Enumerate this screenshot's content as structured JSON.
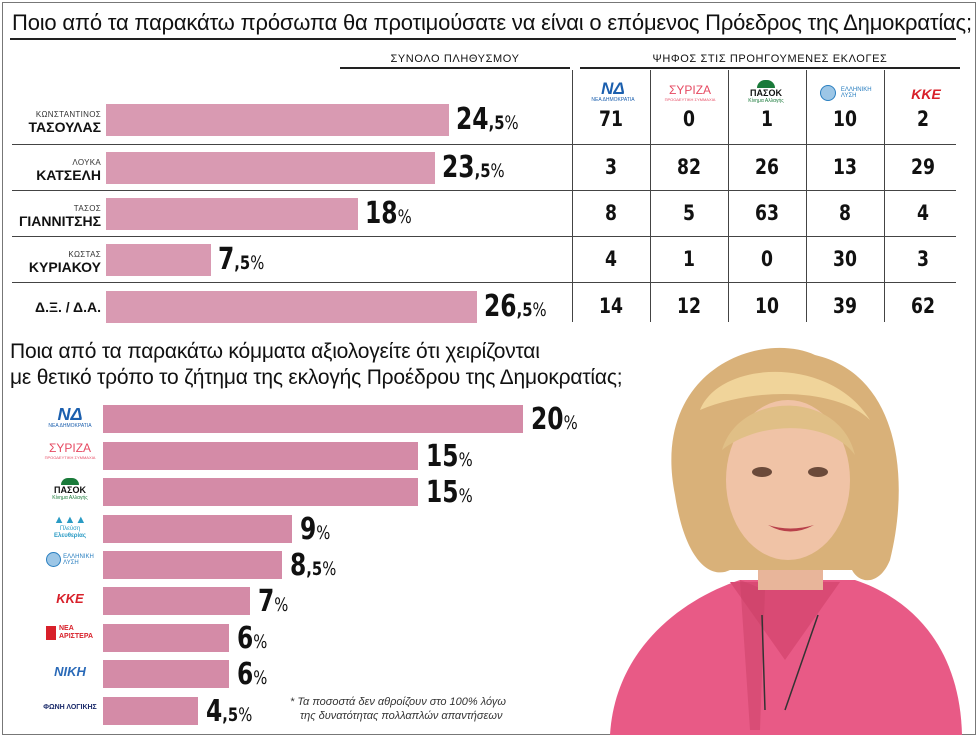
{
  "q1_title": "Ποιο από τα παρακάτω πρόσωπα θα προτιμούσατε να είναι ο επόμενος Πρόεδρος της Δημοκρατίας;",
  "q2_title_line1": "Ποια από τα παρακάτω κόμματα αξιολογείτε ότι χειρίζονται",
  "q2_title_line2": "με θετικό τρόπο το ζήτημα της εκλογής Προέδρου της Δημοκρατίας;",
  "header_total": "ΣΥΝΟΛΟ ΠΛΗΘΥΣΜΟΥ",
  "header_previous": "ΨΗΦΟΣ ΣΤΙΣ ΠΡΟΗΓΟΥΜΕΝΕΣ ΕΚΛΟΓΕΣ",
  "logos": {
    "nd": {
      "mark": "ΝΔ",
      "sub": "ΝΕΑ ΔΗΜΟΚΡΑΤΙΑ",
      "color": "#1b5fae"
    },
    "syriza": {
      "mark": "ΣΥΡΙΖΑ",
      "sub": "ΠΡΟΟΔΕΥΤΙΚΗ ΣΥΜΜΑΧΙΑ",
      "color": "#e64a62"
    },
    "pasok": {
      "mark": "ΠΑΣΟΚ",
      "sub": "Κίνημα Αλλαγής",
      "color": "#1a7a3a"
    },
    "plefsi": {
      "mark": "Πλεύση",
      "sub": "Ελευθερίας",
      "color": "#2a9bc4"
    },
    "elliniki": {
      "mark": "ΕΛΛΗΝΙΚΗ",
      "sub": "ΛΥΣΗ",
      "color": "#2a7fc0"
    },
    "kke": {
      "mark": "ΚΚΕ",
      "sub": "",
      "color": "#d8202a"
    },
    "nea_aristera": {
      "mark": "ΝΕΑ",
      "sub": "ΑΡΙΣΤΕΡΑ",
      "color": "#d8202a"
    },
    "niki": {
      "mark": "ΝΙΚΗ",
      "sub": "",
      "color": "#2a6ab8"
    },
    "foni": {
      "mark": "ΦΩΝΗ ΛΟΓΙΚΗΣ",
      "sub": "",
      "color": "#1a2a6a"
    }
  },
  "q1_rows": [
    {
      "first": "ΚΩΝΣΤΑΝΤΙΝΟΣ",
      "last": "ΤΑΣΟΥΛΑΣ",
      "int": "24",
      "dec": ",5",
      "pct": "%"
    },
    {
      "first": "ΛΟΥΚΑ",
      "last": "ΚΑΤΣΕΛΗ",
      "int": "23",
      "dec": ",5",
      "pct": "%"
    },
    {
      "first": "ΤΑΣΟΣ",
      "last": "ΓΙΑΝΝΙΤΣΗΣ",
      "int": "18",
      "dec": "",
      "pct": "%"
    },
    {
      "first": "ΚΩΣΤΑΣ",
      "last": "ΚΥΡΙΑΚΟΥ",
      "int": "7",
      "dec": ",5",
      "pct": "%"
    },
    {
      "first": "",
      "last": "Δ.Ξ. / Δ.Α.",
      "int": "26",
      "dec": ",5",
      "pct": "%"
    }
  ],
  "q1_cells": [
    [
      "71",
      "0",
      "1",
      "10",
      "2"
    ],
    [
      "3",
      "82",
      "26",
      "13",
      "29"
    ],
    [
      "8",
      "5",
      "63",
      "8",
      "4"
    ],
    [
      "4",
      "1",
      "0",
      "30",
      "3"
    ],
    [
      "14",
      "12",
      "10",
      "39",
      "62"
    ]
  ],
  "q2_rows": [
    {
      "int": "20",
      "dec": "",
      "pct": "%"
    },
    {
      "int": "15",
      "dec": "",
      "pct": "%"
    },
    {
      "int": "15",
      "dec": "",
      "pct": "%"
    },
    {
      "int": "9",
      "dec": "",
      "pct": "%"
    },
    {
      "int": "8",
      "dec": ",5",
      "pct": "%"
    },
    {
      "int": "7",
      "dec": "",
      "pct": "%"
    },
    {
      "int": "6",
      "dec": "",
      "pct": "%"
    },
    {
      "int": "6",
      "dec": "",
      "pct": "%"
    },
    {
      "int": "4",
      "dec": ",5",
      "pct": "%"
    }
  ],
  "note_line1": "* Τα ποσοστά δεν αθροίζουν στο 100% λόγω",
  "note_line2": "της δυνατότητας πολλαπλών απαντήσεων",
  "chart_data": [
    {
      "type": "bar",
      "orientation": "horizontal",
      "title": "Ποιο από τα παρακάτω πρόσωπα θα προτιμούσατε να είναι ο επόμενος Πρόεδρος της Δημοκρατίας;",
      "categories": [
        "ΚΩΝΣΤΑΝΤΙΝΟΣ ΤΑΣΟΥΛΑΣ",
        "ΛΟΥΚΑ ΚΑΤΣΕΛΗ",
        "ΤΑΣΟΣ ΓΙΑΝΝΙΤΣΗΣ",
        "ΚΩΣΤΑΣ ΚΥΡΙΑΚΟΥ",
        "Δ.Ξ. / Δ.Α."
      ],
      "values": [
        24.5,
        23.5,
        18,
        7.5,
        26.5
      ],
      "unit": "%",
      "xlim": [
        0,
        30
      ]
    },
    {
      "type": "table",
      "title": "ΨΗΦΟΣ ΣΤΙΣ ΠΡΟΗΓΟΥΜΕΝΕΣ ΕΚΛΟΓΕΣ",
      "columns": [
        "ΝΔ",
        "ΣΥΡΙΖΑ",
        "ΠΑΣΟΚ",
        "ΕΛΛΗΝΙΚΗ ΛΥΣΗ",
        "ΚΚΕ"
      ],
      "rows": [
        "ΚΩΝΣΤΑΝΤΙΝΟΣ ΤΑΣΟΥΛΑΣ",
        "ΛΟΥΚΑ ΚΑΤΣΕΛΗ",
        "ΤΑΣΟΣ ΓΙΑΝΝΙΤΣΗΣ",
        "ΚΩΣΤΑΣ ΚΥΡΙΑΚΟΥ",
        "Δ.Ξ. / Δ.Α."
      ],
      "values": [
        [
          71,
          0,
          1,
          10,
          2
        ],
        [
          3,
          82,
          26,
          13,
          29
        ],
        [
          8,
          5,
          63,
          8,
          4
        ],
        [
          4,
          1,
          0,
          30,
          3
        ],
        [
          14,
          12,
          10,
          39,
          62
        ]
      ]
    },
    {
      "type": "bar",
      "orientation": "horizontal",
      "title": "Ποια από τα παρακάτω κόμματα αξιολογείτε ότι χειρίζονται με θετικό τρόπο το ζήτημα της εκλογής Προέδρου της Δημοκρατίας;",
      "categories": [
        "ΝΔ",
        "ΣΥΡΙΖΑ",
        "ΠΑΣΟΚ",
        "Πλεύση Ελευθερίας",
        "ΕΛΛΗΝΙΚΗ ΛΥΣΗ",
        "ΚΚΕ",
        "ΝΕΑ ΑΡΙΣΤΕΡΑ",
        "ΝΙΚΗ",
        "ΦΩΝΗ ΛΟΓΙΚΗΣ"
      ],
      "values": [
        20,
        15,
        15,
        9,
        8.5,
        7,
        6,
        6,
        4.5
      ],
      "unit": "%",
      "xlim": [
        0,
        20
      ]
    }
  ]
}
